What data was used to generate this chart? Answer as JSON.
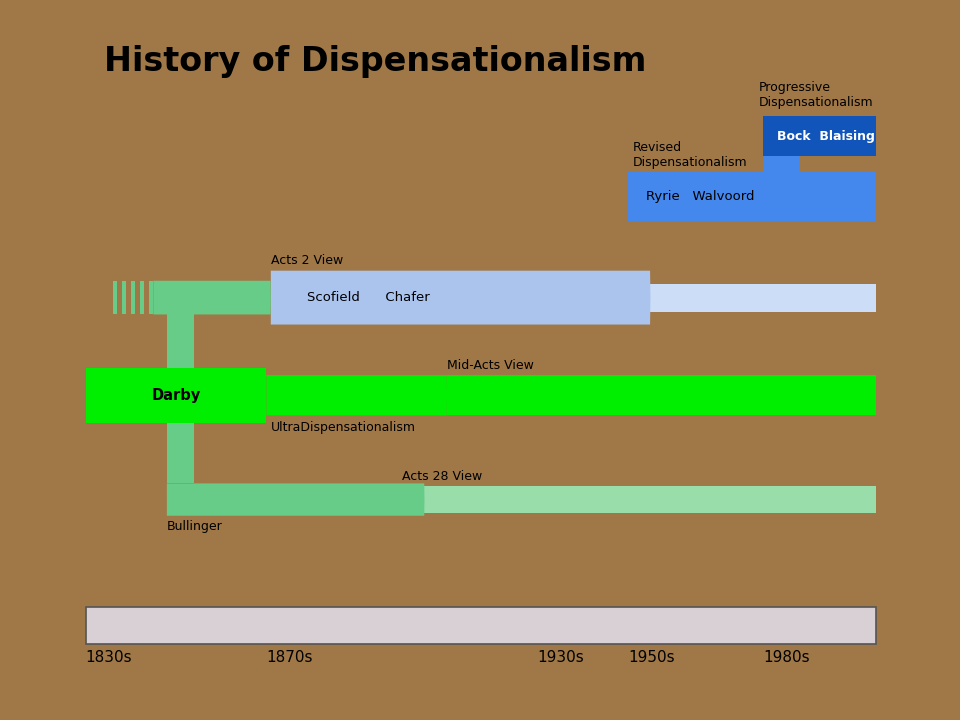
{
  "title": "History of Dispensationalism",
  "title_fontsize": 24,
  "title_fontweight": "bold",
  "bg_outer": "#a07848",
  "bg_inner": "#ffffff",
  "x_min": 1820,
  "x_max": 2015,
  "y_min": 0,
  "y_max": 1,
  "tick_years": [
    1830,
    1870,
    1930,
    1950,
    1980
  ],
  "tick_labels": [
    "1830s",
    "1870s",
    "1930s",
    "1950s",
    "1980s"
  ],
  "colors": {
    "dark_blue": "#1155bb",
    "mid_blue": "#4488ee",
    "light_blue": "#aac4ee",
    "lighter_blue": "#ccddf8",
    "bright_green": "#00ee00",
    "med_green": "#66cc88",
    "light_green": "#99ddaa",
    "timeline": "#d8d0d5"
  }
}
